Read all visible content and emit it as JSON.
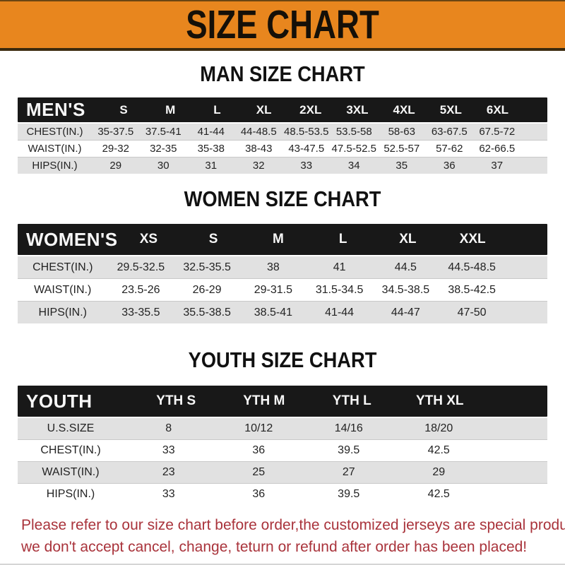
{
  "banner": {
    "title": "SIZE CHART"
  },
  "sections": [
    {
      "title": "MAN SIZE CHART",
      "header_label": "MEN'S",
      "columns": [
        "S",
        "M",
        "L",
        "XL",
        "2XL",
        "3XL",
        "4XL",
        "5XL",
        "6XL"
      ],
      "rows": [
        {
          "label": "CHEST(IN.)",
          "values": [
            "35-37.5",
            "37.5-41",
            "41-44",
            "44-48.5",
            "48.5-53.5",
            "53.5-58",
            "58-63",
            "63-67.5",
            "67.5-72"
          ]
        },
        {
          "label": "WAIST(IN.)",
          "values": [
            "29-32",
            "32-35",
            "35-38",
            "38-43",
            "43-47.5",
            "47.5-52.5",
            "52.5-57",
            "57-62",
            "62-66.5"
          ]
        },
        {
          "label": "HIPS(IN.)",
          "values": [
            "29",
            "30",
            "31",
            "32",
            "33",
            "34",
            "35",
            "36",
            "37"
          ]
        }
      ]
    },
    {
      "title": "WOMEN SIZE CHART",
      "header_label": "WOMEN'S",
      "columns": [
        "XS",
        "S",
        "M",
        "L",
        "XL",
        "XXL"
      ],
      "rows": [
        {
          "label": "CHEST(IN.)",
          "values": [
            "29.5-32.5",
            "32.5-35.5",
            "38",
            "41",
            "44.5",
            "44.5-48.5"
          ]
        },
        {
          "label": "WAIST(IN.)",
          "values": [
            "23.5-26",
            "26-29",
            "29-31.5",
            "31.5-34.5",
            "34.5-38.5",
            "38.5-42.5"
          ]
        },
        {
          "label": "HIPS(IN.)",
          "values": [
            "33-35.5",
            "35.5-38.5",
            "38.5-41",
            "41-44",
            "44-47",
            "47-50"
          ]
        }
      ]
    },
    {
      "title": "YOUTH SIZE CHART",
      "header_label": "YOUTH",
      "columns": [
        "YTH S",
        "YTH M",
        "YTH L",
        "YTH XL"
      ],
      "rows": [
        {
          "label": "U.S.SIZE",
          "values": [
            "8",
            "10/12",
            "14/16",
            "18/20"
          ]
        },
        {
          "label": "CHEST(IN.)",
          "values": [
            "33",
            "36",
            "39.5",
            "42.5"
          ]
        },
        {
          "label": "WAIST(IN.)",
          "values": [
            "23",
            "25",
            "27",
            "29"
          ]
        },
        {
          "label": "HIPS(IN.)",
          "values": [
            "33",
            "36",
            "39.5",
            "42.5"
          ]
        }
      ]
    }
  ],
  "footer": {
    "line1": "Please refer to our size chart before order,the customized jerseys are special products,",
    "line2": "we don't accept cancel, change, teturn or refund after order has been placed!"
  },
  "colors": {
    "banner_bg": "#E8861E",
    "header_bar_bg": "#181818",
    "row_alt_bg": "#E1E1E1",
    "footer_text": "#A9333B"
  }
}
